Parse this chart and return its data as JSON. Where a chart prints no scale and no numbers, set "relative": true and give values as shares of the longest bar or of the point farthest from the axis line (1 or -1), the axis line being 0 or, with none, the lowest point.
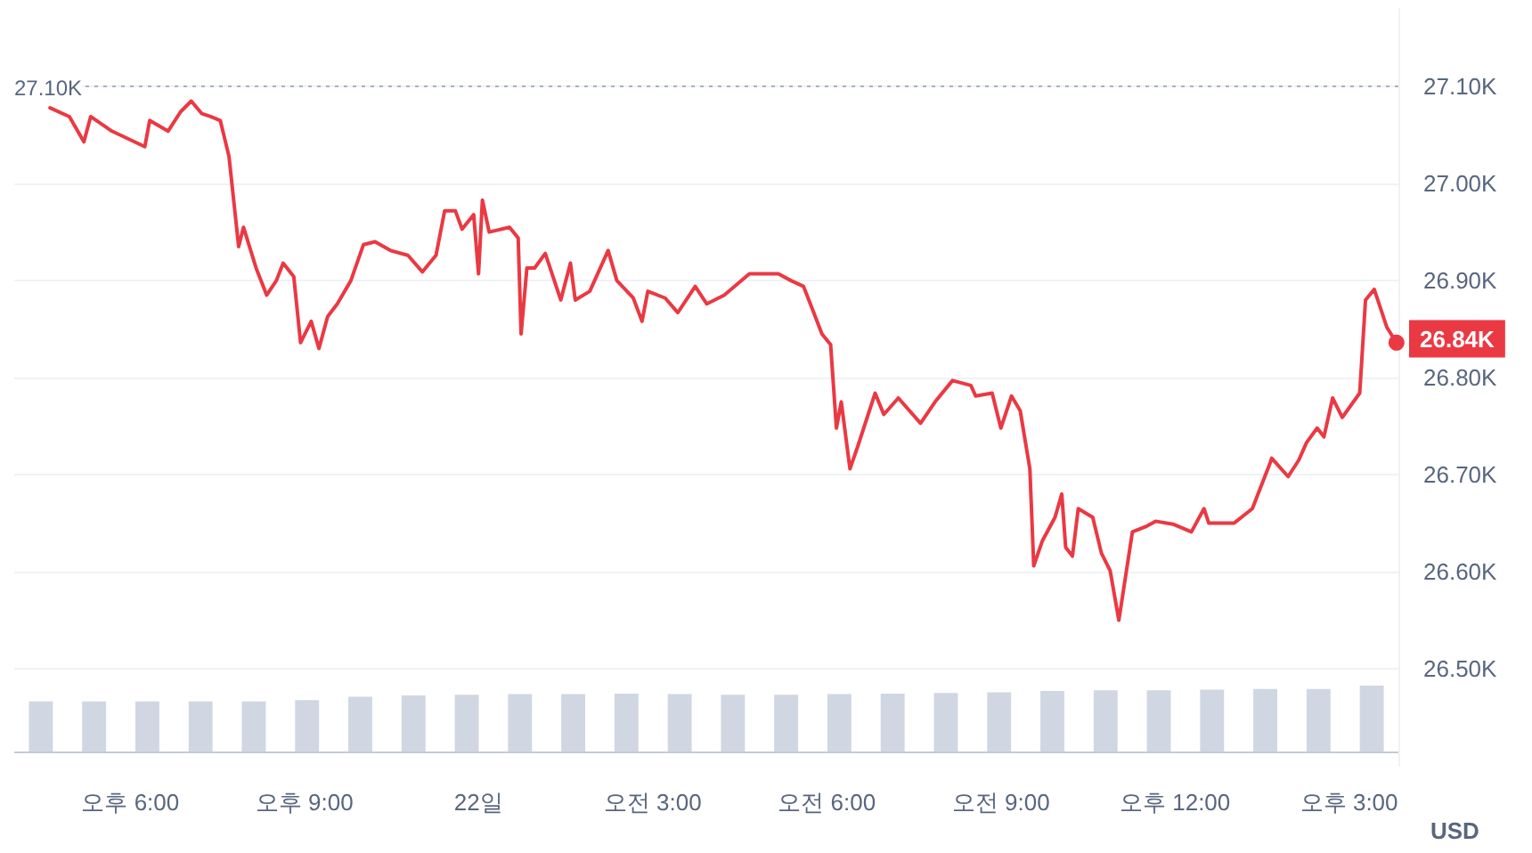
{
  "chart_data": [
    {
      "type": "line",
      "ylabel": "USD",
      "color": "#ea3943",
      "x": [
        "--09-21T16:37",
        "--09-21T16:57",
        "--09-21T17:12",
        "--09-21T17:19",
        "--09-21T17:41",
        "--09-21T18:15",
        "--09-21T18:20",
        "--09-21T18:39",
        "--09-21T18:52",
        "--09-21T19:03",
        "--09-21T19:14",
        "--09-21T19:23",
        "--09-21T19:33",
        "--09-21T19:42",
        "--09-21T19:52",
        "--09-21T19:57",
        "--09-21T20:10",
        "--09-21T20:21",
        "--09-21T20:31",
        "--09-21T20:38",
        "--09-21T20:49",
        "--09-21T20:56",
        "--09-21T21:07",
        "--09-21T21:15",
        "--09-21T21:24",
        "--09-21T21:34",
        "--09-21T21:48",
        "--09-21T22:01",
        "--09-21T22:13",
        "--09-21T22:29",
        "--09-21T22:47",
        "--09-21T23:02",
        "--09-21T23:16",
        "--09-21T23:25",
        "--09-21T23:36",
        "--09-21T23:43",
        "--09-21T23:55",
        "--09-22T00:00",
        "--09-22T00:04",
        "--09-22T00:11",
        "--09-22T00:32",
        "--09-22T00:41",
        "--09-22T00:44",
        "--09-22T00:50",
        "--09-22T00:58",
        "--09-22T01:09",
        "--09-22T01:25",
        "--09-22T01:35",
        "--09-22T01:40",
        "--09-22T01:55",
        "--09-22T02:14",
        "--09-22T02:23",
        "--09-22T02:40",
        "--09-22T02:49",
        "--09-22T02:55",
        "--09-22T03:13",
        "--09-22T03:26",
        "--09-22T03:44",
        "--09-22T03:56",
        "--09-22T04:14",
        "--09-22T04:40",
        "--09-22T05:10",
        "--09-22T05:23",
        "--09-22T05:36",
        "--09-22T05:45",
        "--09-22T05:55",
        "--09-22T06:04",
        "--09-22T06:10",
        "--09-22T06:15",
        "--09-22T06:24",
        "--09-22T06:32",
        "--09-22T06:50",
        "--09-22T06:59",
        "--09-22T07:14",
        "--09-22T07:37",
        "--09-22T07:52",
        "--09-22T08:10",
        "--09-22T08:29",
        "--09-22T08:34",
        "--09-22T08:51",
        "--09-22T09:00",
        "--09-22T09:11",
        "--09-22T09:20",
        "--09-22T09:30",
        "--09-22T09:34",
        "--09-22T09:43",
        "--09-22T09:56",
        "--09-22T10:03",
        "--09-22T10:07",
        "--09-22T10:14",
        "--09-22T10:20",
        "--09-22T10:35",
        "--09-22T10:44",
        "--09-22T10:53",
        "--09-22T11:02",
        "--09-22T11:16",
        "--09-22T11:31",
        "--09-22T11:40",
        "--09-22T11:58",
        "--09-22T12:17",
        "--09-22T12:30",
        "--09-22T12:35",
        "--09-22T13:01",
        "--09-22T13:20",
        "--09-22T13:38",
        "--09-22T13:40",
        "--09-22T13:57",
        "--09-22T14:08",
        "--09-22T14:16",
        "--09-22T14:27",
        "--09-22T14:34",
        "--09-22T14:43",
        "--09-22T14:53",
        "--09-22T15:11",
        "--09-22T15:17",
        "--09-22T15:26",
        "--09-22T15:39",
        "--09-22T15:49"
      ],
      "values": [
        27.078,
        27.069,
        27.043,
        27.069,
        27.054,
        27.038,
        27.065,
        27.054,
        27.074,
        27.085,
        27.072,
        27.069,
        27.065,
        27.028,
        26.935,
        26.955,
        26.913,
        26.885,
        26.9,
        26.918,
        26.904,
        26.836,
        26.858,
        26.83,
        26.863,
        26.876,
        26.9,
        26.937,
        26.94,
        26.931,
        26.926,
        26.909,
        26.926,
        26.972,
        26.972,
        26.953,
        26.968,
        26.907,
        26.983,
        26.95,
        26.955,
        26.944,
        26.845,
        26.913,
        26.913,
        26.928,
        26.88,
        26.918,
        26.88,
        26.889,
        26.931,
        26.9,
        26.882,
        26.858,
        26.889,
        26.882,
        26.867,
        26.894,
        26.876,
        26.885,
        26.907,
        26.907,
        26.9,
        26.894,
        26.871,
        26.845,
        26.834,
        26.748,
        26.775,
        26.706,
        26.729,
        26.784,
        26.762,
        26.779,
        26.753,
        26.775,
        26.797,
        26.792,
        26.781,
        26.784,
        26.748,
        26.781,
        26.766,
        26.706,
        26.606,
        26.632,
        26.656,
        26.68,
        26.625,
        26.616,
        26.665,
        26.656,
        26.619,
        26.601,
        26.55,
        26.641,
        26.647,
        26.652,
        26.649,
        26.641,
        26.665,
        26.65,
        26.65,
        26.665,
        26.711,
        26.717,
        26.698,
        26.715,
        26.733,
        26.748,
        26.739,
        26.779,
        26.759,
        26.784,
        26.88,
        26.891,
        26.852,
        26.836
      ],
      "xlim": [
        "--09-21T16:00",
        "--09-22T15:51"
      ],
      "xticks": [
        {
          "value": "--09-21T18:00",
          "label": "오후 6:00"
        },
        {
          "value": "--09-21T21:00",
          "label": "오후 9:00"
        },
        {
          "value": "--09-22T00:00",
          "label": "22일"
        },
        {
          "value": "--09-22T03:00",
          "label": "오전 3:00"
        },
        {
          "value": "--09-22T06:00",
          "label": "오전 6:00"
        },
        {
          "value": "--09-22T09:00",
          "label": "오전 9:00"
        },
        {
          "value": "--09-22T12:00",
          "label": "오후 12:00"
        },
        {
          "value": "--09-22T15:00",
          "label": "오후 3:00"
        }
      ],
      "ylim": [
        26.4,
        27.18
      ],
      "yticks": [
        {
          "value": 26.5,
          "label": "26.50K"
        },
        {
          "value": 26.6,
          "label": "26.60K"
        },
        {
          "value": 26.7,
          "label": "26.70K"
        },
        {
          "value": 26.8,
          "label": "26.80K"
        },
        {
          "value": 26.9,
          "label": "26.90K"
        },
        {
          "value": 27.0,
          "label": "27.00K"
        },
        {
          "value": 27.1,
          "label": "27.10K"
        }
      ],
      "ref_lines": [
        {
          "axis": "y",
          "value": 27.1,
          "label": "27.10K",
          "color": "#a6b0c3",
          "line_style": "dotted"
        }
      ],
      "annotations": [
        {
          "text": "26.84K",
          "x": "--09-22T15:49",
          "y": 26.84
        }
      ],
      "grid": "y",
      "marker": "none"
    },
    {
      "type": "bar",
      "relative": true,
      "color": "#d0d7e2",
      "categories": [
        null,
        null,
        null,
        null,
        null,
        null,
        null,
        null,
        null,
        null,
        null,
        null,
        null,
        null,
        null,
        null,
        null,
        null,
        null,
        null,
        null,
        null,
        null,
        null,
        null,
        null
      ],
      "values": [
        0.76,
        0.76,
        0.76,
        0.76,
        0.76,
        0.78,
        0.83,
        0.85,
        0.86,
        0.87,
        0.87,
        0.88,
        0.87,
        0.86,
        0.86,
        0.87,
        0.88,
        0.89,
        0.9,
        0.92,
        0.93,
        0.93,
        0.94,
        0.95,
        0.95,
        1
      ]
    }
  ]
}
